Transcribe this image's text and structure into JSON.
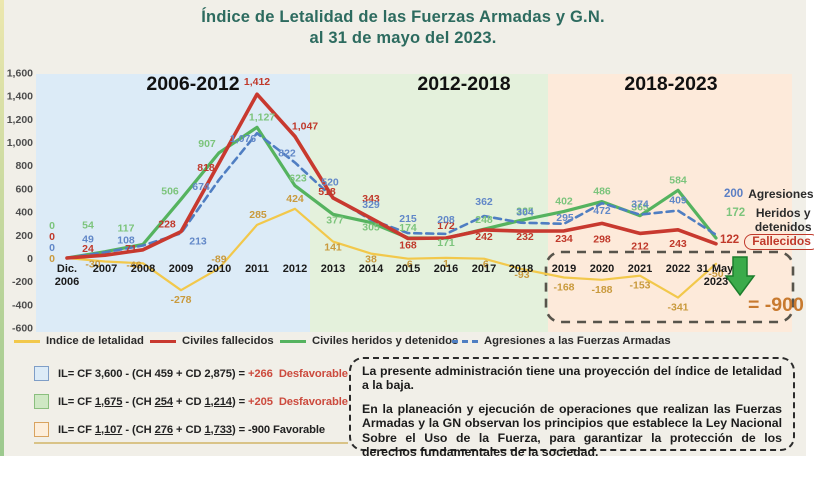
{
  "title": {
    "line1": "Índice de Letalidad de las Fuerzas Armadas y G.N.",
    "line2": "al 31 de mayo del 2023."
  },
  "theme": {
    "title_color": "#2d6b5f",
    "result_red": "#cc4a3d",
    "summary_orange": "#c87a2f"
  },
  "chart_data": {
    "type": "line",
    "title": "Índice de Letalidad de las Fuerzas Armadas y G.N. al 31 de mayo del 2023",
    "categories": [
      "Dic.|2006",
      "2007",
      "2008",
      "2009",
      "2010",
      "2011",
      "2012",
      "2013",
      "2014",
      "2015",
      "2016",
      "2017",
      "2018",
      "2019",
      "2020",
      "2021",
      "2022",
      "31 May.|2023"
    ],
    "ylim": [
      -600,
      1600
    ],
    "ytick_step": 200,
    "grid": false,
    "legend_position": "bottom",
    "periods": [
      {
        "label": "2006-2012",
        "color": "#dcebf7"
      },
      {
        "label": "2012-2018",
        "color": "#e4f1dc"
      },
      {
        "label": "2018-2023",
        "color": "#fdeada"
      }
    ],
    "series": [
      {
        "key": "indice",
        "name": "Indice de letalidad",
        "color": "#f2c84b",
        "dash": false,
        "values": [
          0,
          -30,
          -46,
          -278,
          -89,
          285,
          424,
          141,
          38,
          -6,
          1,
          -6,
          -93,
          -168,
          -188,
          -153,
          -341,
          -50
        ]
      },
      {
        "key": "fallecidos",
        "name": "Civiles fallecidos",
        "color": "#c8392f",
        "dash": false,
        "values": [
          0,
          24,
          71,
          228,
          818,
          1412,
          1047,
          518,
          343,
          168,
          172,
          242,
          232,
          234,
          298,
          212,
          243,
          122
        ]
      },
      {
        "key": "heridos",
        "name": "Civiles heridos y detenidos",
        "color": "#55b35f",
        "dash": false,
        "values": [
          0,
          54,
          117,
          506,
          907,
          1127,
          623,
          377,
          305,
          174,
          171,
          248,
          325,
          402,
          486,
          365,
          584,
          172
        ]
      },
      {
        "key": "agresiones",
        "name": "Agresiones a las Fuerzas Armadas",
        "color": "#4f7ec2",
        "dash": true,
        "values": [
          0,
          49,
          108,
          213,
          674,
          1076,
          822,
          520,
          329,
          215,
          208,
          362,
          304,
          295,
          472,
          374,
          409,
          200
        ]
      }
    ]
  },
  "legend": {
    "items": [
      {
        "label": "Indice de letalidad"
      },
      {
        "label": "Civiles fallecidos"
      },
      {
        "label": "Civiles heridos y detenidos"
      },
      {
        "label": "Agresiones a las Fuerzas Armadas"
      }
    ]
  },
  "annotations": {
    "agresiones": {
      "value": "200",
      "label": "Agresiones"
    },
    "heridos": {
      "value": "172",
      "label": "Heridos y detenidos"
    },
    "fallecidos": {
      "value": "122",
      "label": "Fallecidos"
    }
  },
  "summary": {
    "text": "= -900"
  },
  "formulas": [
    {
      "box": "blue",
      "segments": [
        {
          "t": "IL= CF 3,600 - (CH 459 + CD 2,875) = "
        },
        {
          "t": "+266  Desfavorable",
          "c": "r"
        }
      ]
    },
    {
      "box": "green",
      "segments": [
        {
          "t": "IL= CF "
        },
        {
          "t": "1,675",
          "u": true
        },
        {
          "t": " - (CH "
        },
        {
          "t": "254",
          "u": true
        },
        {
          "t": " + CD "
        },
        {
          "t": "1,214",
          "u": true
        },
        {
          "t": ") = "
        },
        {
          "t": "+205  Desfavorable",
          "c": "r"
        }
      ]
    },
    {
      "box": "orange",
      "segments": [
        {
          "t": "IL= CF "
        },
        {
          "t": "1,107",
          "u": true
        },
        {
          "t": " - (CH "
        },
        {
          "t": "276",
          "u": true
        },
        {
          "t": " + CD "
        },
        {
          "t": "1,733",
          "u": true
        },
        {
          "t": ") = -900 Favorable"
        }
      ]
    }
  ],
  "note": {
    "p1": "La presente administración tiene una proyección del índice de letalidad a la baja.",
    "p2": "En la planeación y ejecución de operaciones que realizan las Fuerzas Armadas y la GN observan los principios que establece la Ley Nacional Sobre el Uso de la Fuerza, para garantizar la protección de los derechos fundamentales de la sociedad."
  }
}
